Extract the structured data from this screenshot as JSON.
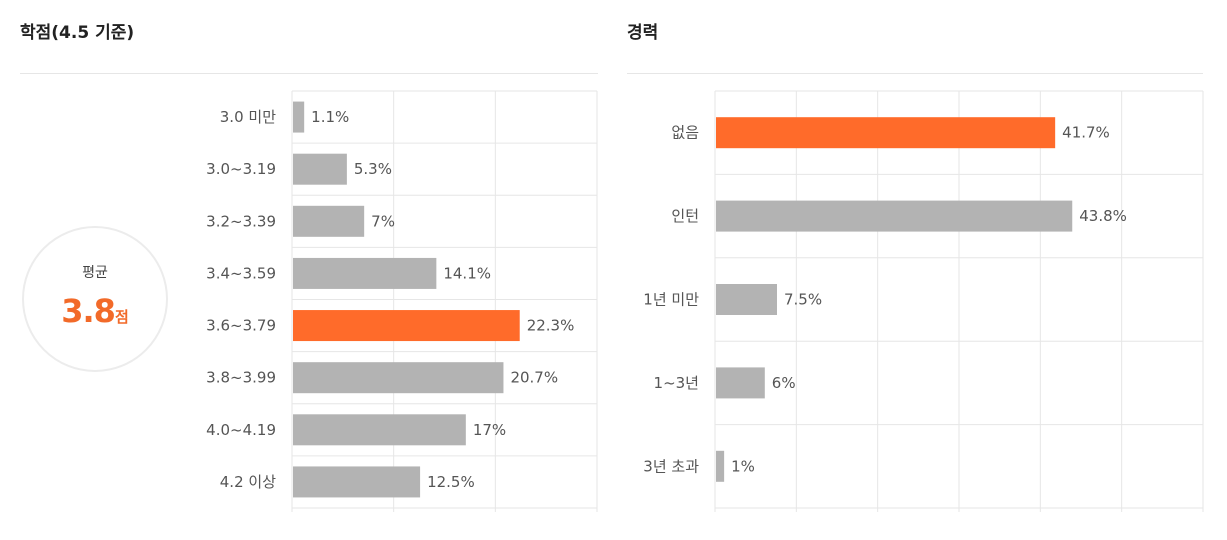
{
  "colors": {
    "highlight": "#ff6b2a",
    "bar": "#b3b3b3",
    "grid": "#e6e6e6",
    "label": "#555555",
    "accent_text": "#f26a29"
  },
  "gpa_panel": {
    "title": "학점(4.5 기준)",
    "average": {
      "label": "평균",
      "value": "3.8",
      "unit": "점"
    }
  },
  "career_panel": {
    "title": "경력"
  },
  "chart_data": [
    {
      "type": "bar",
      "orientation": "horizontal",
      "title": "학점(4.5 기준)",
      "categories": [
        "3.0 미만",
        "3.0~3.19",
        "3.2~3.39",
        "3.4~3.59",
        "3.6~3.79",
        "3.8~3.99",
        "4.0~4.19",
        "4.2 이상"
      ],
      "values": [
        1.1,
        5.3,
        7,
        14.1,
        22.3,
        20.7,
        17,
        12.5
      ],
      "value_labels": [
        "1.1%",
        "5.3%",
        "7%",
        "14.1%",
        "22.3%",
        "20.7%",
        "17%",
        "12.5%"
      ],
      "highlight_index": 4,
      "xlim": [
        0,
        30
      ],
      "grid": true
    },
    {
      "type": "bar",
      "orientation": "horizontal",
      "title": "경력",
      "categories": [
        "없음",
        "인턴",
        "1년 미만",
        "1~3년",
        "3년 초과"
      ],
      "values": [
        41.7,
        43.8,
        7.5,
        6,
        1
      ],
      "value_labels": [
        "41.7%",
        "43.8%",
        "7.5%",
        "6%",
        "1%"
      ],
      "highlight_index": 0,
      "xlim": [
        0,
        60
      ],
      "grid": true
    }
  ]
}
